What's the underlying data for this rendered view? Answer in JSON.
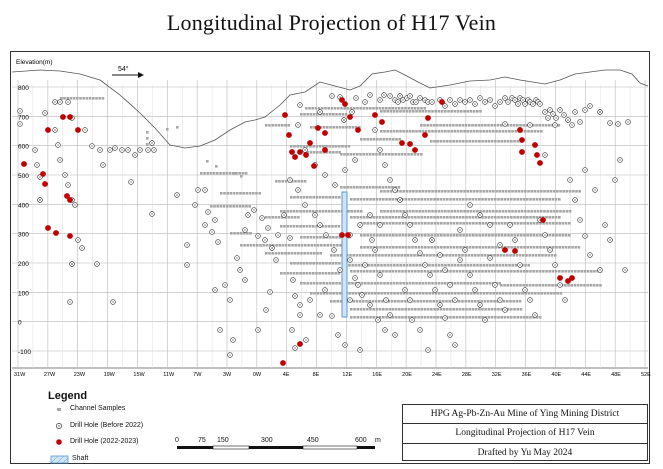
{
  "title": "Longitudinal Projection of H17 Vein",
  "axis": {
    "y_label": "Elevation(m)",
    "y_ticks": [
      "800",
      "700",
      "600",
      "500",
      "400",
      "300",
      "200",
      "100",
      "0",
      "-100"
    ],
    "x_ticks": [
      "31W",
      "27W",
      "23W",
      "19W",
      "15W",
      "11W",
      "7W",
      "3W",
      "0W",
      "4E",
      "8E",
      "12E",
      "16E",
      "20E",
      "24E",
      "28E",
      "32E",
      "36E",
      "40E",
      "44E",
      "48E",
      "52E"
    ]
  },
  "direction_label": "54°",
  "legend": {
    "title": "Legend",
    "items": [
      {
        "label": "Channel Samples",
        "symbol": "square-gray"
      },
      {
        "label": "Drill Hole (Before 2022)",
        "symbol": "circle-dot"
      },
      {
        "label": "Drill Hole (2022-2023)",
        "symbol": "dot-red"
      },
      {
        "label": "Shaft",
        "symbol": "hatch-blue"
      }
    ]
  },
  "scale": {
    "ticks": [
      "0",
      "75",
      "150",
      "300",
      "450",
      "600"
    ],
    "unit": "m"
  },
  "info": {
    "line1": "HPG Ag-Pb-Zn-Au Mine of  Ying Mining District",
    "line2": "Longitudinal Projection of H17 Vein",
    "line3": "Drafted by Yu May 2024"
  },
  "colors": {
    "channel": "#a6a6a6",
    "drill_new": "#c00000",
    "shaft": "#5b9bd5",
    "grid": "#b8b8b8"
  }
}
